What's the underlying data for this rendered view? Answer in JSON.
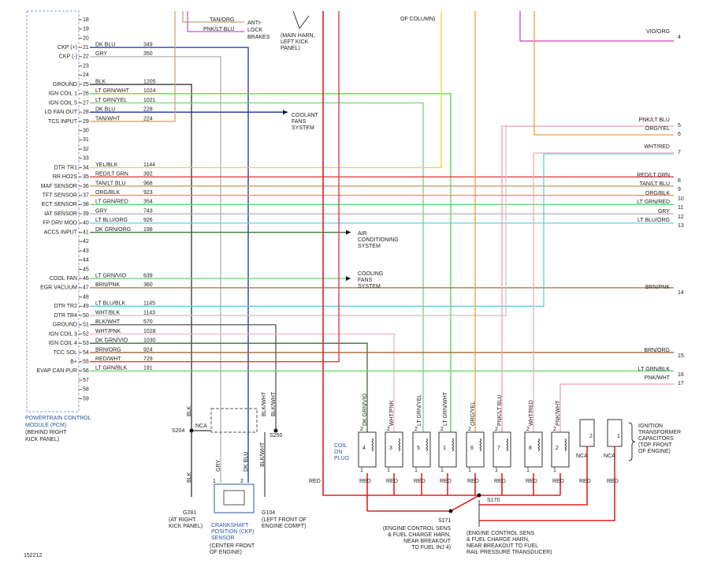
{
  "top": {
    "tan_org": "TAN/ORG",
    "pnk_lt_blu": "PNK/LT BLU",
    "abs": [
      "ANTI-",
      "LOCK",
      "BRAKES"
    ],
    "main_harn": [
      "(MAIN HARN,",
      "LEFT KICK",
      "PANEL)"
    ],
    "column": "OF COLUMN)"
  },
  "pcm": {
    "name": [
      "POWERTRAIN CONTROL",
      "MODULE (PCM)"
    ],
    "location": [
      "(BEHIND RIGHT",
      "KICK PANEL)"
    ],
    "pins": [
      {
        "pin": 18
      },
      {
        "pin": 19
      },
      {
        "pin": 20
      },
      {
        "pin": 21,
        "label": "CKP (+)",
        "color": "DK BLU",
        "circuit": 349,
        "stroke": "#1a2fa0"
      },
      {
        "pin": 22,
        "label": "CKP (-)",
        "color": "GRY",
        "circuit": 350,
        "stroke": "#b0b0b0"
      },
      {
        "pin": 23
      },
      {
        "pin": 24
      },
      {
        "pin": 25,
        "label": "GROUND",
        "color": "BLK",
        "circuit": 1205,
        "stroke": "#333333"
      },
      {
        "pin": 26,
        "label": "IGN COIL 1",
        "color": "LT GRN/WHT",
        "circuit": 1024,
        "stroke": "#4fd84f"
      },
      {
        "pin": 27,
        "label": "IGN COIL 5",
        "color": "LT GRN/YEL",
        "circuit": 1021,
        "stroke": "#6fd86f"
      },
      {
        "pin": 28,
        "label": "LO FAN OUT",
        "color": "DK BLU",
        "circuit": 228,
        "stroke": "#1a2fa0"
      },
      {
        "pin": 29,
        "label": "TCS INPUT",
        "color": "TAN/WHT",
        "circuit": 224,
        "stroke": "#c8a878"
      },
      {
        "pin": 30
      },
      {
        "pin": 31
      },
      {
        "pin": 32
      },
      {
        "pin": 33
      },
      {
        "pin": 34,
        "label": "DTR TR1",
        "color": "YEL/BLK",
        "circuit": 1144,
        "stroke": "#e8d640"
      },
      {
        "pin": 35,
        "label": "RR HO2S",
        "color": "RED/LT GRN",
        "circuit": 392,
        "stroke": "#e03030"
      },
      {
        "pin": 36,
        "label": "MAF SENSOR",
        "color": "TAN/LT BLU",
        "circuit": 968,
        "stroke": "#c8a070"
      },
      {
        "pin": 37,
        "label": "TFT SENSOR",
        "color": "ORG/BLK",
        "circuit": 923,
        "stroke": "#f0a030"
      },
      {
        "pin": 38,
        "label": "ECT SENSOR",
        "color": "LT GRN/RED",
        "circuit": 354,
        "stroke": "#60d060"
      },
      {
        "pin": 39,
        "label": "IAT SENSOR",
        "color": "GRY",
        "circuit": 743,
        "stroke": "#b0b0b0"
      },
      {
        "pin": 40,
        "label": "FP DRV MOD",
        "color": "LT BLU/ORG",
        "circuit": 926,
        "stroke": "#60d0e0"
      },
      {
        "pin": 41,
        "label": "ACCS INPUT",
        "color": "DK GRN/ORG",
        "circuit": 198,
        "stroke": "#3a7a3a"
      },
      {
        "pin": 42
      },
      {
        "pin": 43
      },
      {
        "pin": 44
      },
      {
        "pin": 45
      },
      {
        "pin": 46,
        "label": "COOL FAN",
        "color": "LT GRN/VIO",
        "circuit": 639,
        "stroke": "#60d860"
      },
      {
        "pin": 47,
        "label": "EGR VACUUM",
        "color": "BRN/PNK",
        "circuit": 360,
        "stroke": "#a07040"
      },
      {
        "pin": 48
      },
      {
        "pin": 49,
        "label": "DTR TR2",
        "color": "LT BLU/BLK",
        "circuit": 1145,
        "stroke": "#60d0e0"
      },
      {
        "pin": 50,
        "label": "DTR TR4",
        "color": "WHT/BLK",
        "circuit": 1143,
        "stroke": "#c8c8c8"
      },
      {
        "pin": 51,
        "label": "GROUND",
        "color": "BLK/WHT",
        "circuit": 570,
        "stroke": "#555555"
      },
      {
        "pin": 52,
        "label": "IGN COIL 3",
        "color": "WHT/PNK",
        "circuit": 1028,
        "stroke": "#f0b8c0"
      },
      {
        "pin": 53,
        "label": "IGN COIL 4",
        "color": "DK GRN/VIO",
        "circuit": 1030,
        "stroke": "#3a6a3a"
      },
      {
        "pin": 54,
        "label": "TCC SOL",
        "color": "BRN/ORG",
        "circuit": 924,
        "stroke": "#a06830"
      },
      {
        "pin": 55,
        "label": "B+",
        "color": "RED/WHT",
        "circuit": 729,
        "stroke": "#e03030"
      },
      {
        "pin": 56,
        "label": "EVAP CAN PUR",
        "color": "LT GRN/BLK",
        "circuit": 191,
        "stroke": "#60d860"
      },
      {
        "pin": 57
      },
      {
        "pin": 58
      },
      {
        "pin": 59
      }
    ]
  },
  "destinations": [
    {
      "lines": [
        "COOLANT",
        "FANS",
        "SYSTEM"
      ]
    },
    {
      "lines": [
        "AIR",
        "CONDITIONING",
        "SYSTEM"
      ]
    },
    {
      "lines": [
        "COOLING",
        "FANS",
        "SYSTEM"
      ]
    }
  ],
  "connectors": [
    {
      "color": "VIO/ORG",
      "num": 4,
      "stroke": "#d040b0"
    },
    {
      "color": "PNK/LT BLU",
      "num": 5,
      "stroke": "#f0a0b0"
    },
    {
      "color": "ORG/YEL",
      "num": 6,
      "stroke": "#f0a030"
    },
    {
      "color": "WHT/RED",
      "num": 7,
      "stroke": "#e8b0b0"
    },
    {
      "color": "RED/LT GRN",
      "num": 8,
      "stroke": "#e03030"
    },
    {
      "color": "TAN/LT BLU",
      "num": 9,
      "stroke": "#c8a070"
    },
    {
      "color": "ORG/BLK",
      "num": 10,
      "stroke": "#f0a030"
    },
    {
      "color": "LT GRN/RED",
      "num": 11,
      "stroke": "#60d060"
    },
    {
      "color": "GRY",
      "num": 12,
      "stroke": "#b0b0b0"
    },
    {
      "color": "LT BLU/ORG",
      "num": 13,
      "stroke": "#60d0e0"
    },
    {
      "color": "BRN/PNK",
      "num": 14,
      "stroke": "#a07040"
    },
    {
      "color": "BRN/ORG",
      "num": 15,
      "stroke": "#a06830"
    },
    {
      "color": "LT GRN/BLK",
      "num": 16,
      "stroke": "#60d860"
    },
    {
      "color": "PNK/WHT",
      "num": 17,
      "stroke": "#f0a0b0"
    }
  ],
  "ground": {
    "blk": "BLK",
    "blk_wht": "BLK/WHT",
    "s204": "S204",
    "nca": "NCA",
    "s250": "S250",
    "blk2": "BLK",
    "blk_wht2": "BLK/WHT",
    "g281": "G281",
    "g281_loc": [
      "(AT RIGHT",
      "KICK PANEL)"
    ],
    "g104": "G104",
    "g104_loc": [
      "(LEFT FRONT OF",
      "ENGINE COMPT)"
    ]
  },
  "sensor": {
    "gry": "GRY",
    "dk_blu": "DK BLU",
    "pin1": 1,
    "pin2": 2,
    "name": [
      "CRANKSHAFT",
      "POSITION (CKP)",
      "SENSOR"
    ],
    "location": [
      "(CENTER FRONT",
      "OF ENGINE)"
    ]
  },
  "coils": {
    "label": [
      "COIL",
      "ON",
      "PLUG"
    ],
    "items": [
      {
        "wire": "DK GRN/VIO",
        "coil": 4,
        "top": 2,
        "bottom": 1,
        "out": "RED"
      },
      {
        "wire": "WHT/PNK",
        "coil": 3,
        "top": 2,
        "bottom": 1,
        "out": "RED"
      },
      {
        "wire": "LT GRN/YEL",
        "coil": 5,
        "top": 2,
        "bottom": 1,
        "out": "RED"
      },
      {
        "wire": "LT GRN/WHT",
        "coil": 1,
        "top": 2,
        "bottom": 1,
        "out": "RED"
      },
      {
        "wire": "ORG/YEL",
        "coil": 6,
        "top": 2,
        "bottom": 1,
        "out": "RED"
      },
      {
        "wire": "PNK/LT BLU",
        "coil": 7,
        "top": 2,
        "bottom": 1,
        "out": "RED"
      },
      {
        "wire": "WHT/RED",
        "coil": 8,
        "top": 2,
        "bottom": 1,
        "out": "RED"
      },
      {
        "wire": "PNK/WHT",
        "coil": 2,
        "top": 2,
        "bottom": 1,
        "out": "RED"
      }
    ]
  },
  "feed": "RED",
  "splices": {
    "s170": "S170",
    "s171": "S171",
    "s171_note": [
      "(ENGINE CONTROL SENS",
      "& FUEL CHARGE HARN,",
      "NEAR BREAKOUT",
      "TO FUEL INJ 4)"
    ],
    "s170_note": [
      "(ENGINE CONTROL SENS",
      "& FUEL CHARGE HARN,",
      "NEAR BREAKOUT TO FUEL",
      "RAIL PRESSURE TRANSDUCER)"
    ]
  },
  "capacitors": {
    "items": [
      {
        "pin": 2,
        "nca": "NCA",
        "out": "RED"
      },
      {
        "pin": 1,
        "nca": "NCA",
        "out": "RED"
      }
    ],
    "name": [
      "IGNITION",
      "TRANSFORMER",
      "CAPACITORS",
      "(TOP FRONT",
      "OF ENGINE)"
    ]
  },
  "figure_id": 152212
}
